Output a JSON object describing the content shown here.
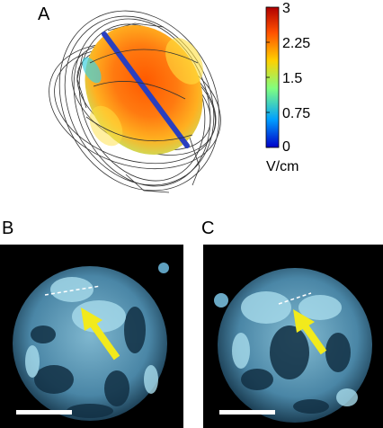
{
  "panels": {
    "a": {
      "label": "A"
    },
    "b": {
      "label": "B"
    },
    "c": {
      "label": "C"
    }
  },
  "colorbar": {
    "ticks": [
      "3",
      "2.25",
      "1.5",
      "0.75",
      "0"
    ],
    "unit": "V/cm",
    "range": [
      0,
      3
    ],
    "colors": [
      "#0000c8",
      "#00a0ff",
      "#80ff80",
      "#ffd000",
      "#ff5000",
      "#b00000"
    ]
  },
  "colors": {
    "probe": "#2a3fbf",
    "arrow": "#f2ea1c",
    "cell_tint": "#8cc8de"
  }
}
